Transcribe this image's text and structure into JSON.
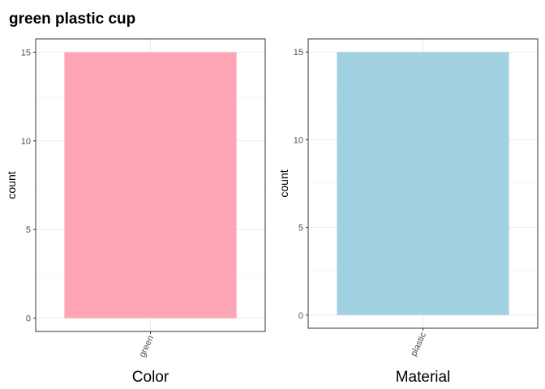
{
  "title": "green plastic cup",
  "chart_data": [
    {
      "type": "bar",
      "categories": [
        "green"
      ],
      "values": [
        15
      ],
      "xlabel": "Color",
      "ylabel": "count",
      "ylim": [
        -0.75,
        15.75
      ],
      "yticks": [
        "0",
        "5",
        "10",
        "15"
      ],
      "bar_color": "#FFA6B6",
      "grid": true
    },
    {
      "type": "bar",
      "categories": [
        "plastic"
      ],
      "values": [
        15
      ],
      "xlabel": "Material",
      "ylabel": "count",
      "ylim": [
        -0.75,
        15.75
      ],
      "yticks": [
        "0",
        "5",
        "10",
        "15"
      ],
      "bar_color": "#A2D2E2",
      "grid": true
    }
  ]
}
